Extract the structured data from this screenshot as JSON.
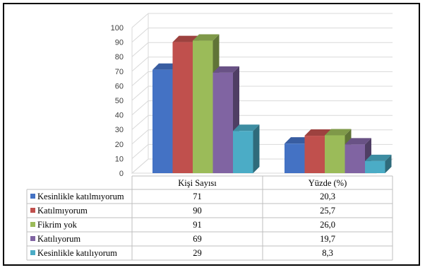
{
  "chart_data": {
    "type": "bar",
    "style": "3d-clustered-column-with-data-table",
    "categories": [
      "Kişi Sayısı",
      "Yüzde (%)"
    ],
    "series": [
      {
        "name": "Kesinlikle katılmıyorum",
        "color": "#4472C4",
        "values": [
          71,
          20.3
        ],
        "labels": [
          "71",
          "20,3"
        ]
      },
      {
        "name": "Katılmıyorum",
        "color": "#C0504D",
        "values": [
          90,
          25.7
        ],
        "labels": [
          "90",
          "25,7"
        ]
      },
      {
        "name": "Fikrim yok",
        "color": "#9BBB59",
        "values": [
          91,
          26.0
        ],
        "labels": [
          "91",
          "26,0"
        ]
      },
      {
        "name": "Katılıyorum",
        "color": "#8064A2",
        "values": [
          69,
          19.7
        ],
        "labels": [
          "69",
          "19,7"
        ]
      },
      {
        "name": "Kesinlikle katılıyorum",
        "color": "#4BACC6",
        "values": [
          29,
          8.3
        ],
        "labels": [
          "29",
          "8,3"
        ]
      }
    ],
    "yticks": [
      "0",
      "10",
      "20",
      "30",
      "40",
      "50",
      "60",
      "70",
      "80",
      "90",
      "100"
    ],
    "ylim": [
      0,
      100
    ],
    "grid": true,
    "legend": "data-table"
  }
}
